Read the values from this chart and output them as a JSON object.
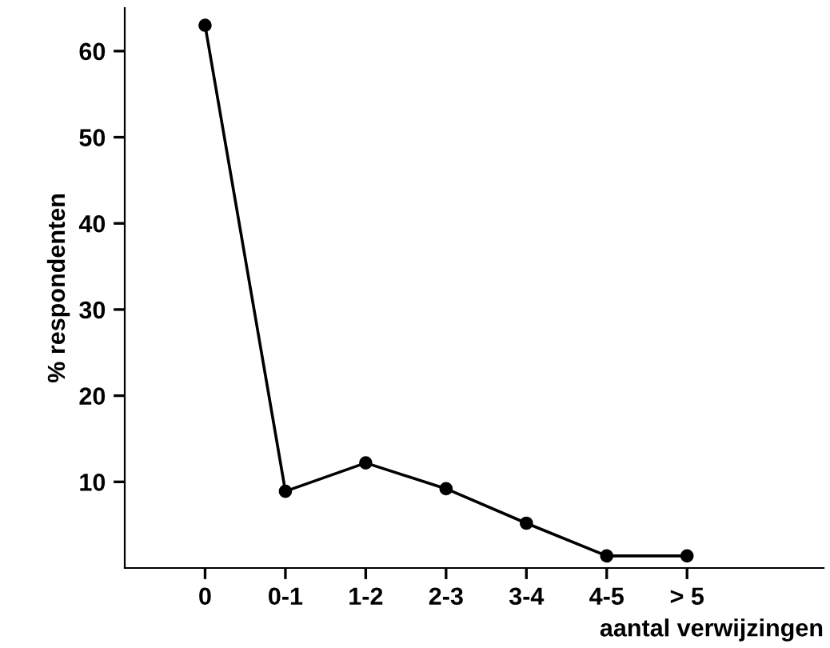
{
  "chart_data": {
    "type": "line",
    "xlabel": "aantal verwijzingen",
    "ylabel": "% respondenten",
    "categories": [
      "0",
      "0-1",
      "1-2",
      "2-3",
      "3-4",
      "4-5",
      "> 5"
    ],
    "series": [
      {
        "color": "#000000",
        "values": [
          63,
          8.9,
          12.2,
          9.2,
          5.2,
          1.4,
          1.4
        ]
      }
    ],
    "ylim": [
      0,
      65
    ],
    "yticks": [
      10,
      20,
      30,
      40,
      50,
      60
    ],
    "grid": false,
    "legend": false,
    "marker": "circle",
    "line_style": "solid"
  }
}
